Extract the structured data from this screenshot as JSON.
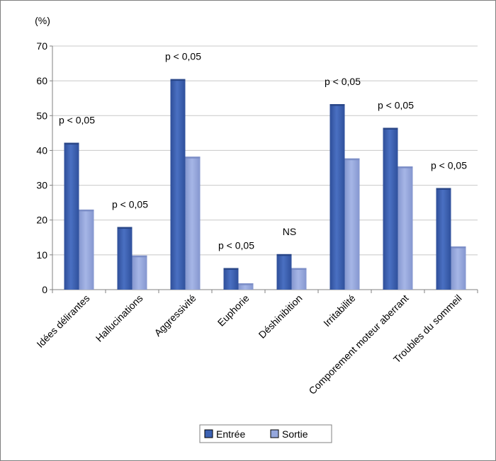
{
  "chart_data": {
    "type": "bar",
    "ylabel": "(%)",
    "ylim": [
      0,
      70
    ],
    "yticks": [
      0,
      10,
      20,
      30,
      40,
      50,
      60,
      70
    ],
    "categories": [
      "Idées délirantes",
      "Hallucinations",
      "Aggressivité",
      "Euphorie",
      "Déshinibition",
      "Irritabilité",
      "Comporement moteur aberrant",
      "Troubles du sommeil"
    ],
    "series": [
      {
        "name": "Entrée",
        "color": "#3d62b3",
        "values": [
          42.2,
          18,
          60.5,
          6.2,
          10.2,
          53.3,
          46.5,
          29.2
        ]
      },
      {
        "name": "Sortie",
        "color": "#95a7dc",
        "values": [
          23,
          9.8,
          38.2,
          1.8,
          6.2,
          37.7,
          35.4,
          12.4
        ]
      }
    ],
    "annotations": [
      "p < 0,05",
      "p < 0,05",
      "p < 0,05",
      "p < 0,05",
      "NS",
      "p < 0,05",
      "p < 0,05",
      "p < 0,05"
    ],
    "grid": true,
    "legend_position": "bottom"
  }
}
